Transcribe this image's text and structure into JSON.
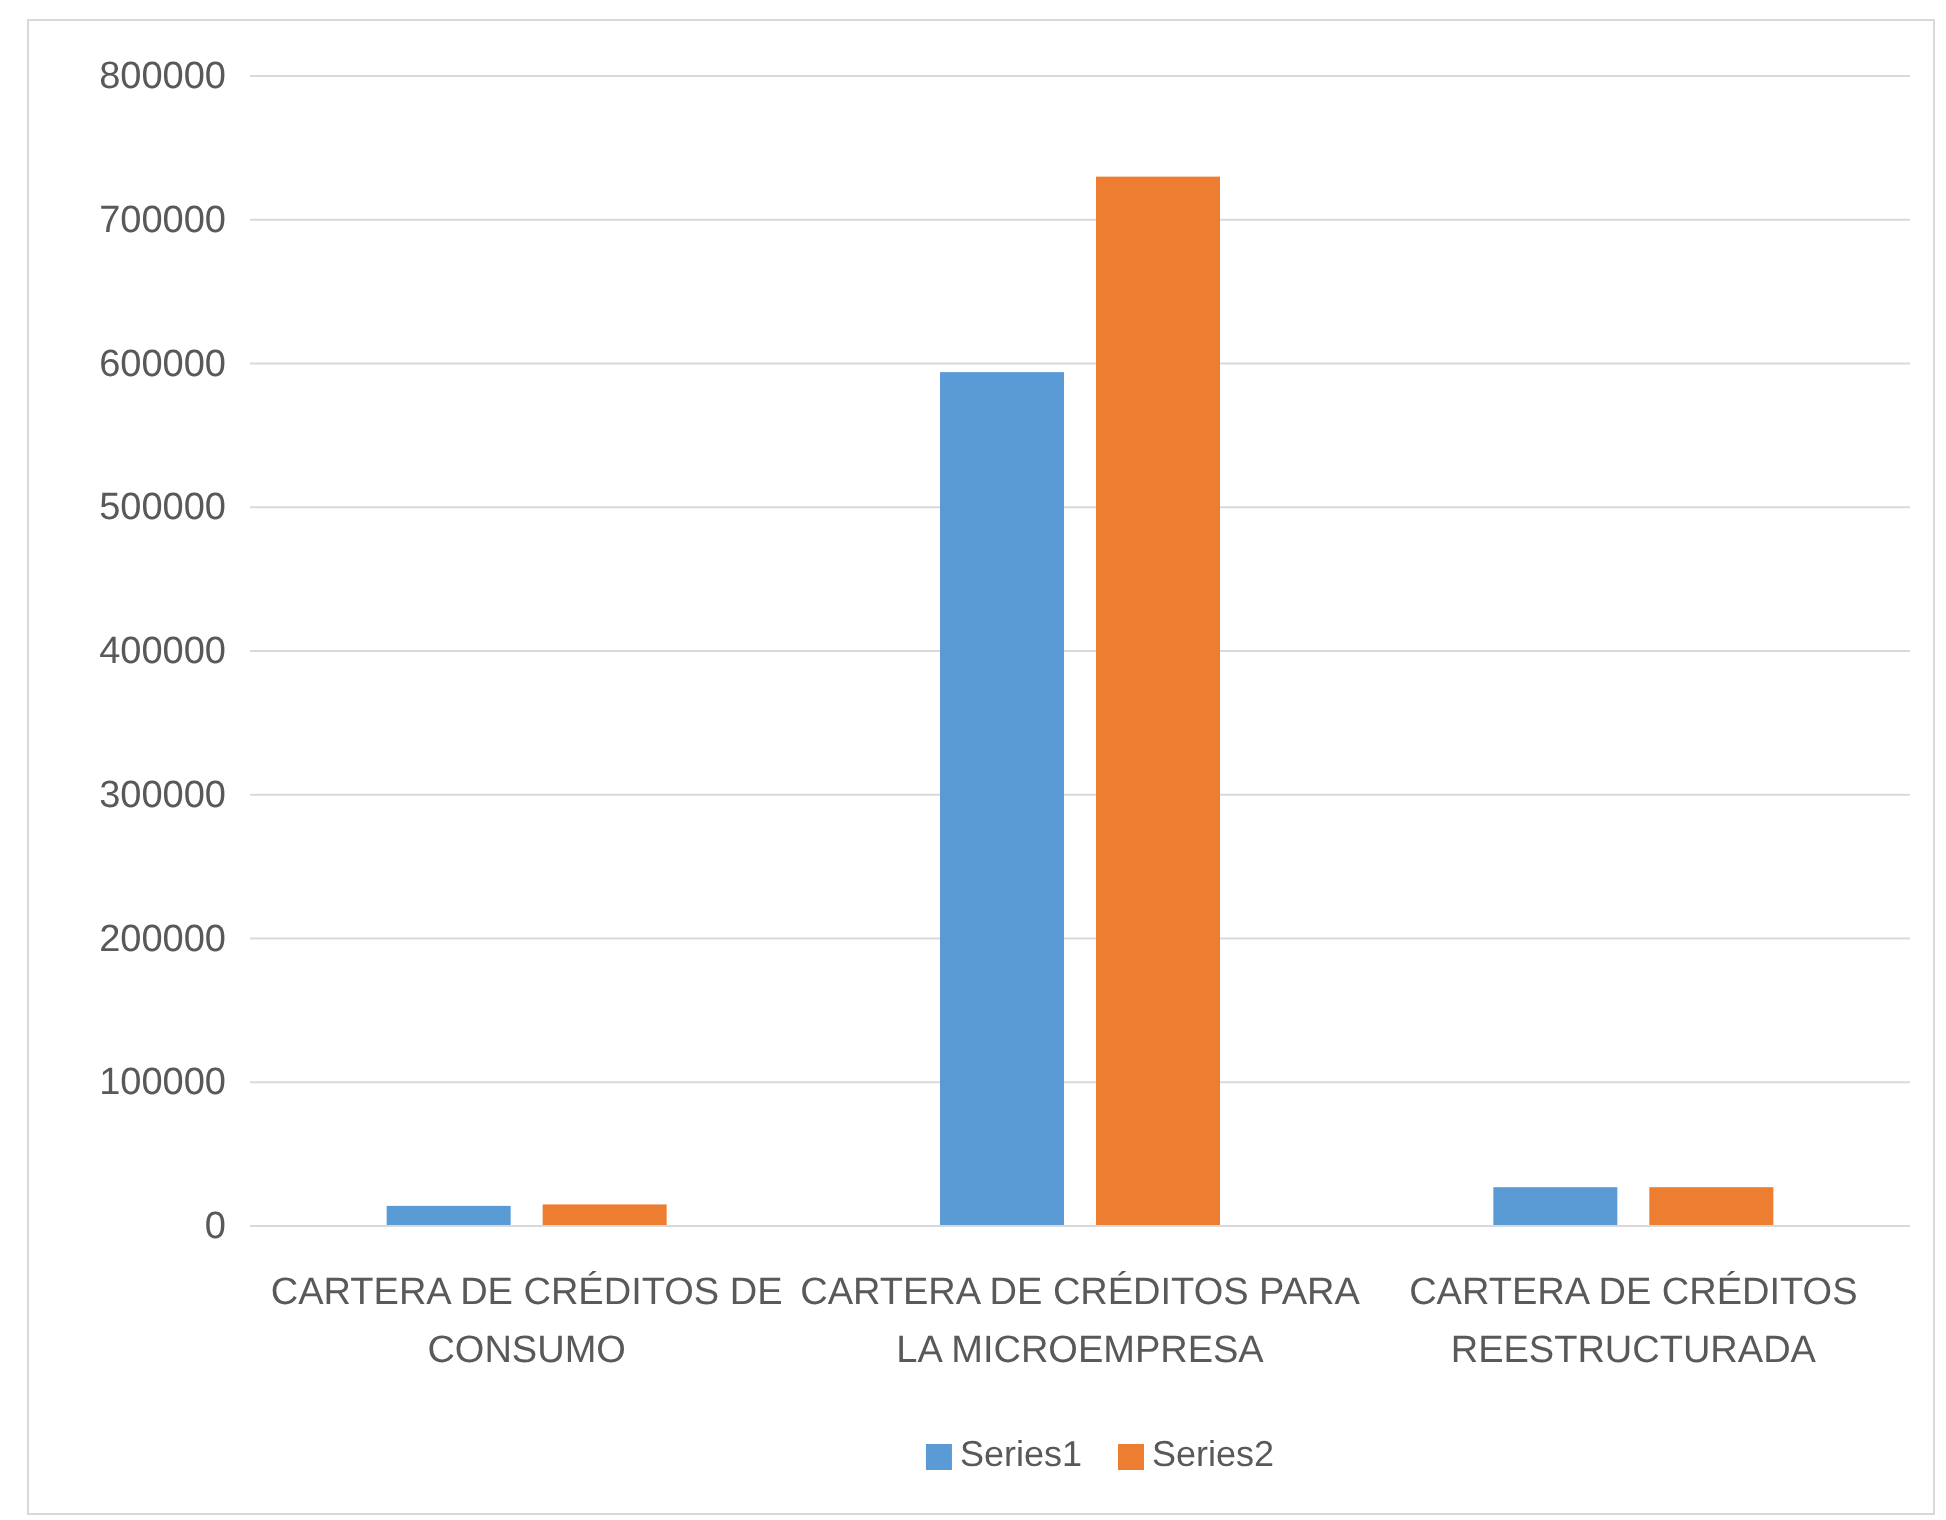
{
  "chart_data": {
    "type": "bar",
    "categories": [
      "CARTERA DE CRÉDITOS DE CONSUMO",
      "CARTERA DE CRÉDITOS PARA LA MICROEMPRESA",
      "CARTERA DE CRÉDITOS REESTRUCTURADA"
    ],
    "series": [
      {
        "name": "Series1",
        "color": "#5b9bd5",
        "values": [
          14000,
          594000,
          27000
        ]
      },
      {
        "name": "Series2",
        "color": "#ed7d31",
        "values": [
          15000,
          730000,
          27000
        ]
      }
    ],
    "ylim": [
      0,
      800000
    ],
    "yticks": [
      0,
      100000,
      200000,
      300000,
      400000,
      500000,
      600000,
      700000,
      800000
    ],
    "grid": "y",
    "legend": "bottom"
  }
}
